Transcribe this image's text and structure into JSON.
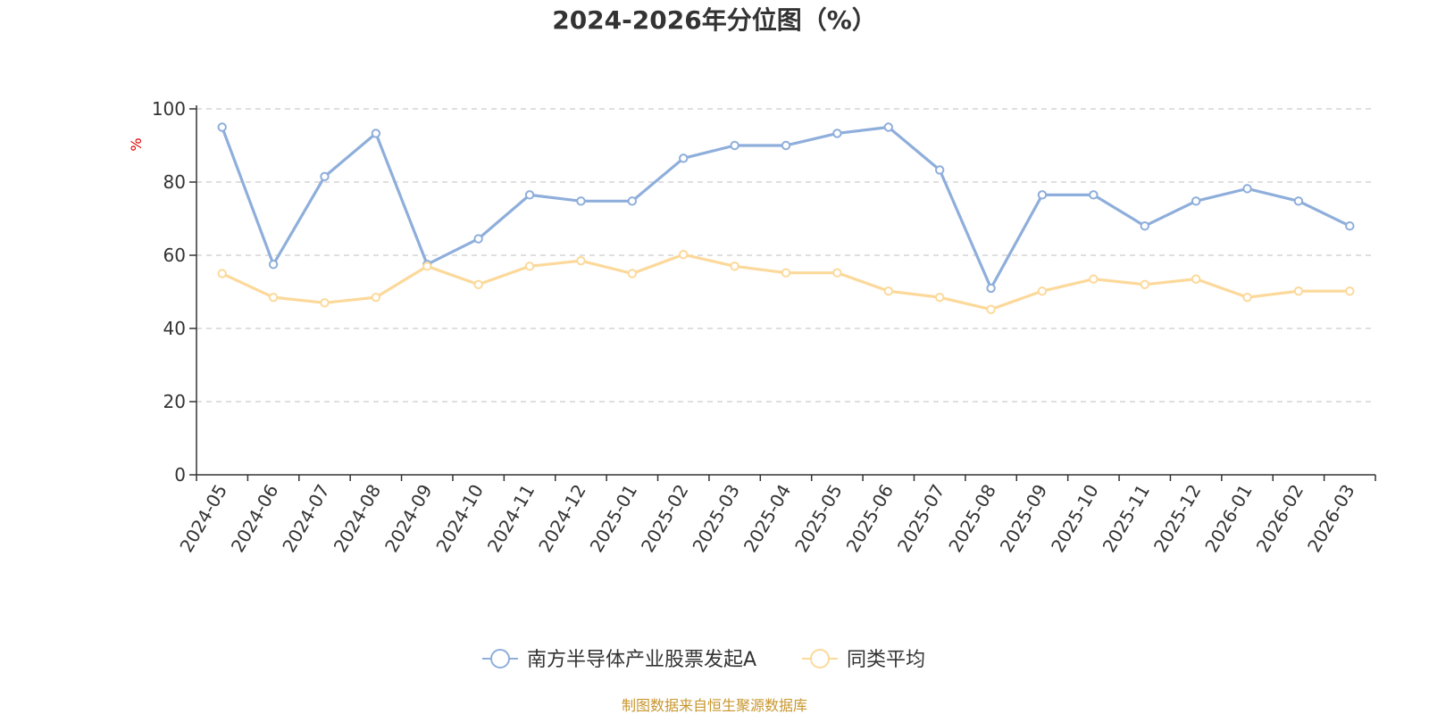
{
  "chart_data": {
    "type": "line",
    "title": "2024-2026年分位图（%）",
    "xlabel": "",
    "ylabel": "%",
    "ylim": [
      0,
      100
    ],
    "yticks": [
      0,
      20,
      40,
      60,
      80,
      100
    ],
    "grid": true,
    "legend_position": "bottom-center",
    "categories": [
      "2024-05",
      "2024-06",
      "2024-07",
      "2024-08",
      "2024-09",
      "2024-10",
      "2024-11",
      "2024-12",
      "2025-01",
      "2025-02",
      "2025-03",
      "2025-04",
      "2025-05",
      "2025-06",
      "2025-07",
      "2025-08",
      "2025-09",
      "2025-10",
      "2025-11",
      "2025-12",
      "2026-01",
      "2026-02",
      "2026-03"
    ],
    "series": [
      {
        "name": "南方半导体产业股票发起A",
        "color": "#8eaedb",
        "values": [
          95,
          57.5,
          81.5,
          93.3,
          57.5,
          64.5,
          76.5,
          74.8,
          74.8,
          86.5,
          90,
          90,
          93.3,
          95,
          83.3,
          51,
          76.5,
          76.5,
          68,
          74.8,
          78.2,
          74.8,
          68
        ]
      },
      {
        "name": "同类平均",
        "color": "#fcd99a",
        "values": [
          55,
          48.5,
          47,
          48.5,
          57,
          52,
          57,
          58.5,
          55,
          60.2,
          57,
          55.2,
          55.2,
          50.2,
          48.5,
          45.2,
          50.2,
          53.5,
          52,
          53.5,
          48.5,
          50.2,
          50.2
        ]
      }
    ],
    "source": "制图数据来自恒生聚源数据库"
  }
}
